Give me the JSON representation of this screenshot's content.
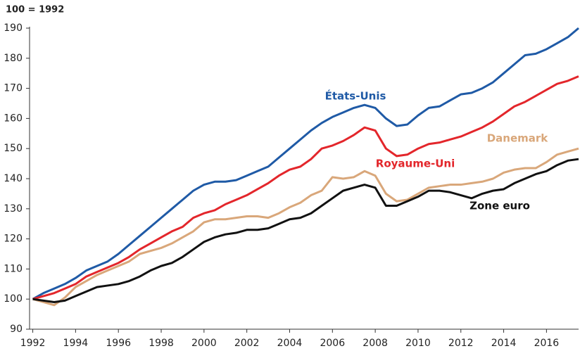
{
  "chart_data": {
    "type": "line",
    "subtitle": "100 = 1992",
    "x": [
      1992,
      1992.5,
      1993,
      1993.5,
      1994,
      1994.5,
      1995,
      1995.5,
      1996,
      1996.5,
      1997,
      1997.5,
      1998,
      1998.5,
      1999,
      1999.5,
      2000,
      2000.5,
      2001,
      2001.5,
      2002,
      2002.5,
      2003,
      2003.5,
      2004,
      2004.5,
      2005,
      2005.5,
      2006,
      2006.5,
      2007,
      2007.5,
      2008,
      2008.5,
      2009,
      2009.5,
      2010,
      2010.5,
      2011,
      2011.5,
      2012,
      2012.5,
      2013,
      2013.5,
      2014,
      2014.5,
      2015,
      2015.5,
      2016,
      2016.5,
      2017,
      2017.5
    ],
    "series": [
      {
        "name": "États-Unis",
        "color": "#1f5aa6",
        "values": [
          100,
          102,
          103.5,
          105,
          107,
          109.5,
          111,
          112.5,
          115,
          118,
          121,
          124,
          127,
          130,
          133,
          136,
          138,
          139,
          139,
          139.5,
          141,
          142.5,
          144,
          147,
          150,
          153,
          156,
          158.5,
          160.5,
          162,
          163.5,
          164.5,
          163.5,
          160,
          157.5,
          158,
          161,
          163.5,
          164,
          166,
          168,
          168.5,
          170,
          172,
          175,
          178,
          181,
          181.5,
          183,
          185,
          187,
          190
        ]
      },
      {
        "name": "Royaume-Uni",
        "color": "#e3262b",
        "values": [
          100,
          101,
          102,
          103.5,
          105,
          107.5,
          109,
          110.5,
          112,
          114,
          116.5,
          118.5,
          120.5,
          122.5,
          124,
          127,
          128.5,
          129.5,
          131.5,
          133,
          134.5,
          136.5,
          138.5,
          141,
          143,
          144,
          146.5,
          150,
          151,
          152.5,
          154.5,
          157,
          156,
          150,
          147.5,
          148,
          150,
          151.5,
          152,
          153,
          154,
          155.5,
          157,
          159,
          161.5,
          164,
          165.5,
          167.5,
          169.5,
          171.5,
          172.5,
          174
        ]
      },
      {
        "name": "Danemark",
        "color": "#d9a77a",
        "values": [
          100,
          99,
          98,
          100.5,
          104,
          106,
          108,
          109.5,
          111,
          112.5,
          115,
          116,
          117,
          118.5,
          120.5,
          122.5,
          125.5,
          126.5,
          126.5,
          127,
          127.5,
          127.5,
          127,
          128.5,
          130.5,
          132,
          134.5,
          136,
          140.5,
          140,
          140.5,
          142.5,
          141,
          135,
          132.5,
          133,
          135,
          137,
          137.5,
          138,
          138,
          138.5,
          139,
          140,
          142,
          143,
          143.5,
          143.5,
          145.5,
          148,
          149,
          150
        ]
      },
      {
        "name": "Zone euro",
        "color": "#111111",
        "values": [
          100,
          99.5,
          99,
          99.5,
          101,
          102.5,
          104,
          104.5,
          105,
          106,
          107.5,
          109.5,
          111,
          112,
          114,
          116.5,
          119,
          120.5,
          121.5,
          122,
          123,
          123,
          123.5,
          125,
          126.5,
          127,
          128.5,
          131,
          133.5,
          136,
          137,
          138,
          137,
          131,
          131,
          132.5,
          134,
          136,
          136,
          135.5,
          134.5,
          133.5,
          135,
          136,
          136.5,
          138.5,
          140,
          141.5,
          142.5,
          144.5,
          146,
          146.5
        ]
      }
    ],
    "xlim": [
      1991.85,
      2017.5
    ],
    "xticks": [
      1992,
      1994,
      1996,
      1998,
      2000,
      2002,
      2004,
      2006,
      2008,
      2010,
      2012,
      2014,
      2016
    ],
    "ylim": [
      90,
      190
    ],
    "yticks": [
      90,
      100,
      110,
      120,
      130,
      140,
      150,
      160,
      170,
      180,
      190
    ],
    "grid": false
  }
}
